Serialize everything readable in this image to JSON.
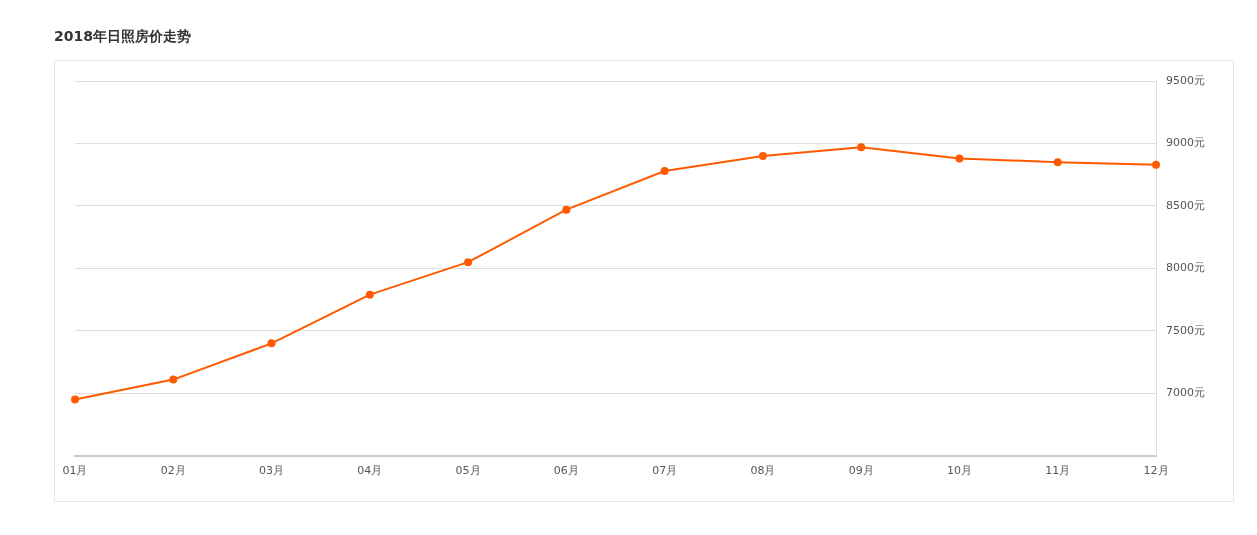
{
  "chart_data": {
    "type": "line",
    "title": "2018年日照房价走势",
    "categories": [
      "01月",
      "02月",
      "03月",
      "04月",
      "05月",
      "06月",
      "07月",
      "08月",
      "09月",
      "10月",
      "11月",
      "12月"
    ],
    "series": [
      {
        "color": "#ff5a00",
        "values": [
          6950,
          7110,
          7400,
          7790,
          8050,
          8470,
          8780,
          8900,
          8970,
          8880,
          8850,
          8830
        ]
      }
    ],
    "ylim": [
      6500,
      9500
    ],
    "yticks": [
      {
        "value": 6500,
        "label": null
      },
      {
        "value": 7000,
        "label": "7000元"
      },
      {
        "value": 7500,
        "label": "7500元"
      },
      {
        "value": 8000,
        "label": "8000元"
      },
      {
        "value": 8500,
        "label": "8500元"
      },
      {
        "value": 9000,
        "label": "9000元"
      },
      {
        "value": 9500,
        "label": "9500元"
      }
    ],
    "grid": "y",
    "marker": "circle",
    "legend": false
  }
}
